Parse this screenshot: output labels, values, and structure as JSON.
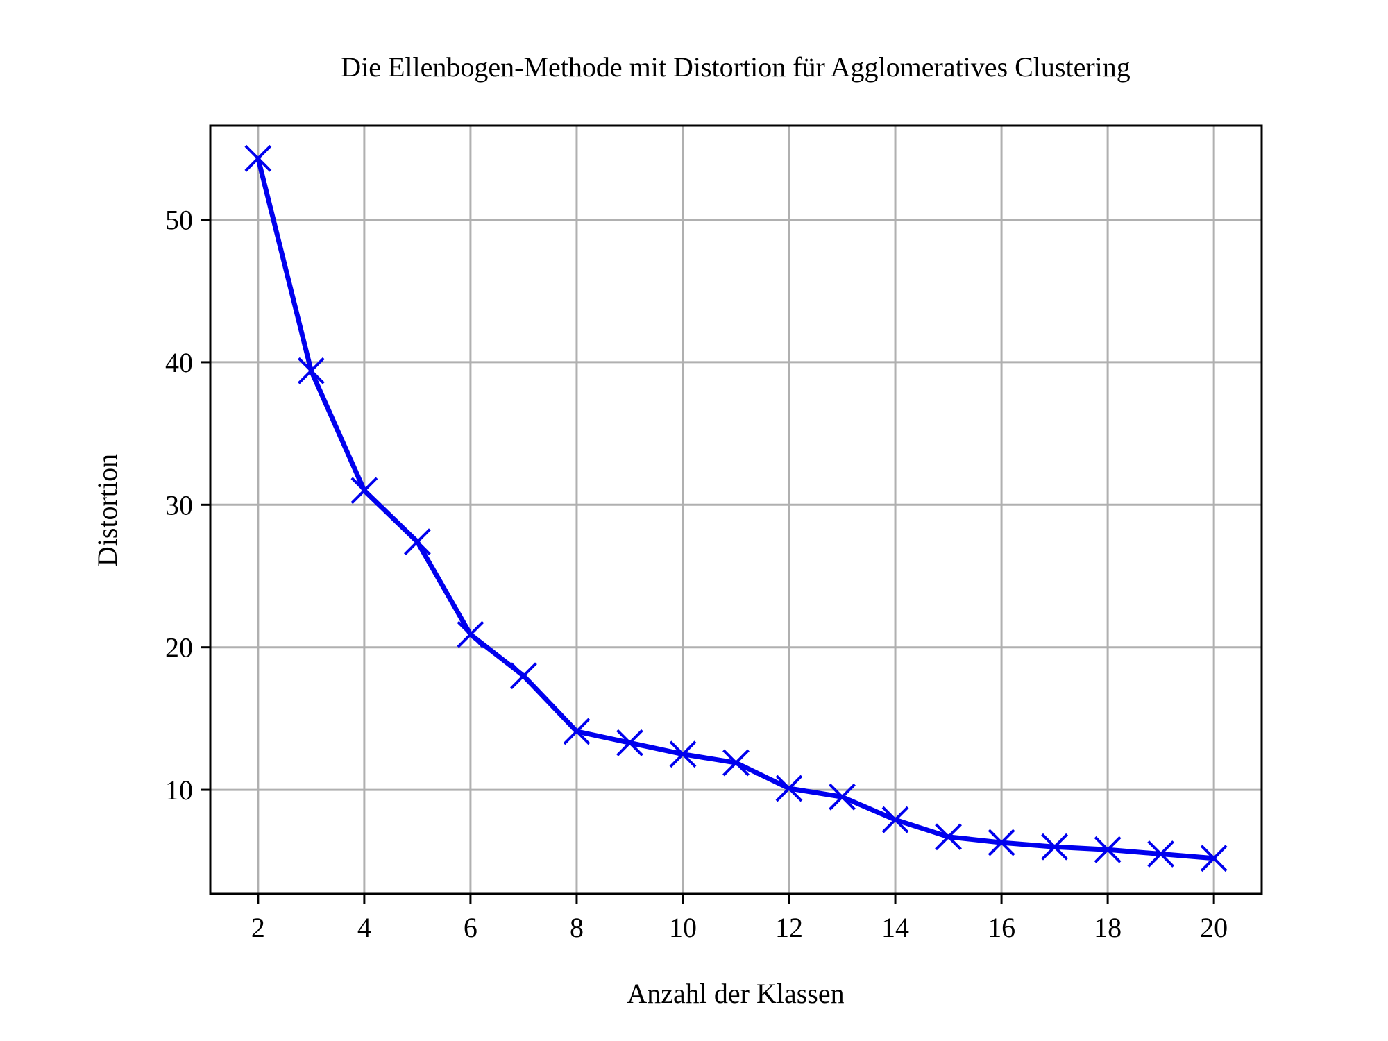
{
  "chart_data": {
    "type": "line",
    "title": "Die Ellenbogen-Methode mit Distortion für Agglomeratives Clustering",
    "xlabel": "Anzahl der Klassen",
    "ylabel": "Distortion",
    "x": [
      2,
      3,
      4,
      5,
      6,
      7,
      8,
      9,
      10,
      11,
      12,
      13,
      14,
      15,
      16,
      17,
      18,
      19,
      20
    ],
    "series": [
      {
        "values": [
          54.3,
          39.4,
          31.0,
          27.4,
          20.9,
          18.0,
          14.1,
          13.3,
          12.5,
          11.9,
          10.1,
          9.5,
          7.9,
          6.7,
          6.3,
          6.0,
          5.8,
          5.5,
          5.2
        ],
        "color": "#0000ee",
        "marker": "x"
      }
    ],
    "xlim": [
      1.1,
      20.9
    ],
    "ylim": [
      2.7,
      56.6
    ],
    "xticks": [
      2,
      4,
      6,
      8,
      10,
      12,
      14,
      16,
      18,
      20
    ],
    "yticks": [
      10,
      20,
      30,
      40,
      50
    ],
    "grid": true,
    "grid_color": "#b0b0b0",
    "axes_color": "#000000"
  }
}
